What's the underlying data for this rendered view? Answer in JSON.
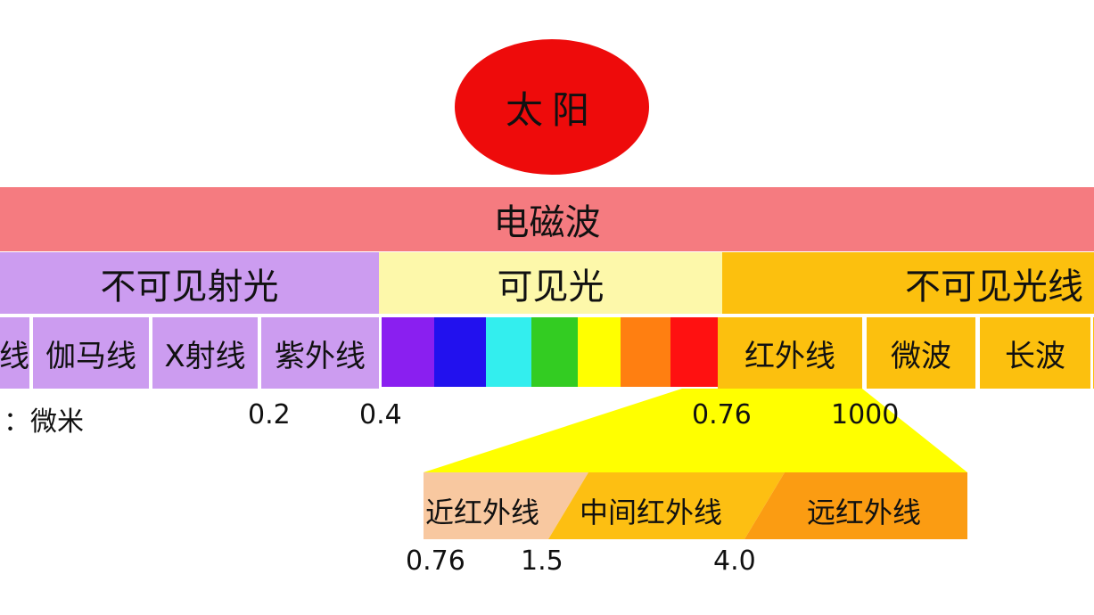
{
  "sun": {
    "label": "太阳",
    "color": "#ee0b0b"
  },
  "electromagnetic_wave": {
    "label": "电磁波",
    "color": "#f57b80"
  },
  "categories": {
    "invisible_rays": {
      "label": "不可见射光",
      "color": "#cc9cf0"
    },
    "visible_light": {
      "label": "可见光",
      "color": "#fdf8aa"
    },
    "invisible_light": {
      "label": "不可见光线",
      "color": "#fcc00e"
    }
  },
  "bands": {
    "truncated": "线",
    "gamma": "伽马线",
    "xray": "X射线",
    "ultraviolet": "紫外线",
    "infrared": "红外线",
    "microwave": "微波",
    "longwave": "长波"
  },
  "spectrum_colors": [
    "#8a1ff0",
    "#2211ee",
    "#33eeee",
    "#33cc22",
    "#ffff00",
    "#ff7f11",
    "#ff1111"
  ],
  "scale": {
    "unit": "：微米",
    "ticks": [
      "0.2",
      "0.4",
      "0.76",
      "1000"
    ]
  },
  "infrared_detail": {
    "near": {
      "label": "近红外线",
      "color": "#f8c8a0"
    },
    "middle": {
      "label": "中间红外线",
      "color": "#fdbf12"
    },
    "far": {
      "label": "远红外线",
      "color": "#fb9c12"
    },
    "ticks": [
      "0.76",
      "1.5",
      "4.0"
    ],
    "zoom_color": "#ffff00"
  }
}
